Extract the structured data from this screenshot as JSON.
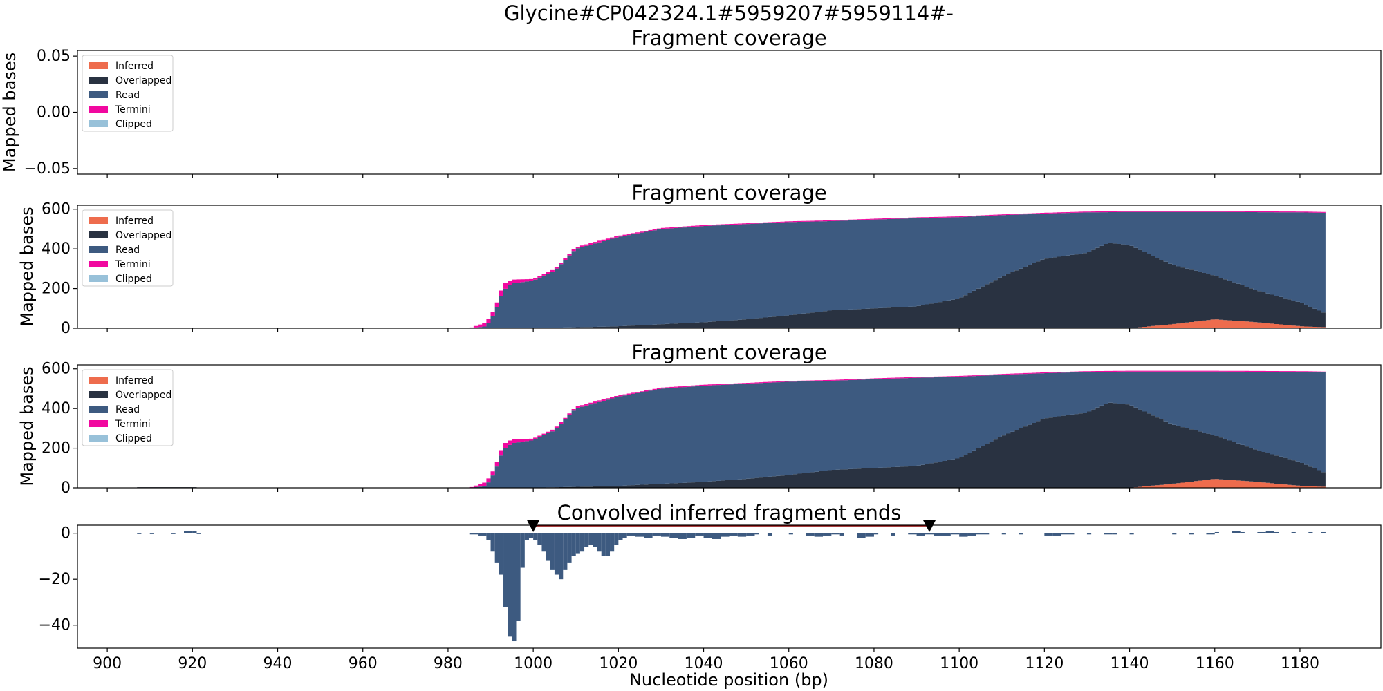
{
  "figure": {
    "suptitle": "Glycine#CP042324.1#5959207#5959114#-",
    "xlabel": "Nucleotide position (bp)"
  },
  "colors": {
    "inferred": "#ee6c4d",
    "overlapped": "#293241",
    "read": "#3d5a80",
    "termini": "#f1089f",
    "clipped": "#98c1d9",
    "marker": "#000000",
    "marker_line": "#8b0000"
  },
  "legend": {
    "placement": "upper-left",
    "entries": [
      "Inferred",
      "Overlapped",
      "Read",
      "Termini",
      "Clipped"
    ]
  },
  "chart_data": [
    {
      "type": "area",
      "title": "Fragment coverage",
      "ylabel": "Mapped bases",
      "xlim": [
        893,
        1199
      ],
      "ylim": [
        -0.055,
        0.055
      ],
      "yticks": [
        "0.05",
        "0.00",
        "−0.05"
      ],
      "ytick_values": [
        0.05,
        0,
        -0.05
      ],
      "series": []
    },
    {
      "type": "area",
      "stacked": true,
      "title": "Fragment coverage",
      "ylabel": "Mapped bases",
      "xlim": [
        893,
        1199
      ],
      "ylim": [
        0,
        620
      ],
      "yticks": [
        "0",
        "200",
        "400",
        "600"
      ],
      "ytick_values": [
        0,
        200,
        400,
        600
      ],
      "x_knots": [
        985,
        989,
        991,
        993,
        995,
        1000,
        1005,
        1010,
        1015,
        1020,
        1025,
        1030,
        1040,
        1050,
        1060,
        1070,
        1080,
        1090,
        1100,
        1110,
        1120,
        1130,
        1135,
        1140,
        1150,
        1160,
        1170,
        1180,
        1186
      ],
      "overlapped_knots": [
        0,
        0,
        0,
        0,
        0,
        0,
        3,
        5,
        7,
        10,
        15,
        20,
        30,
        45,
        65,
        90,
        100,
        110,
        150,
        260,
        350,
        380,
        430,
        420,
        300,
        220,
        160,
        120,
        70
      ],
      "inferred_knots": [
        0,
        0,
        0,
        0,
        0,
        0,
        0,
        0,
        0,
        0,
        0,
        0,
        0,
        0,
        0,
        0,
        0,
        0,
        0,
        0,
        0,
        0,
        0,
        0,
        20,
        45,
        30,
        10,
        5
      ],
      "total_knots": [
        0,
        10,
        80,
        190,
        225,
        240,
        290,
        400,
        430,
        460,
        480,
        500,
        515,
        525,
        535,
        540,
        548,
        555,
        560,
        570,
        578,
        584,
        585,
        586,
        586,
        586,
        585,
        584,
        582
      ],
      "termini_knots": [
        0,
        20,
        20,
        30,
        20,
        8,
        8,
        8,
        8,
        6,
        5,
        5,
        5,
        4,
        4,
        4,
        4,
        4,
        4,
        4,
        4,
        4,
        4,
        4,
        4,
        4,
        4,
        4,
        4
      ],
      "tail": {
        "x": [
          907,
          921
        ],
        "value": 3
      }
    },
    {
      "type": "area",
      "stacked": true,
      "title": "Fragment coverage",
      "ylabel": "Mapped bases",
      "xlim": [
        893,
        1199
      ],
      "ylim": [
        0,
        620
      ],
      "yticks": [
        "0",
        "200",
        "400",
        "600"
      ],
      "ytick_values": [
        0,
        200,
        400,
        600
      ],
      "x_knots": [
        985,
        989,
        991,
        993,
        995,
        1000,
        1005,
        1010,
        1015,
        1020,
        1025,
        1030,
        1040,
        1050,
        1060,
        1070,
        1080,
        1090,
        1100,
        1110,
        1120,
        1130,
        1135,
        1140,
        1150,
        1160,
        1170,
        1180,
        1186
      ],
      "overlapped_knots": [
        0,
        0,
        0,
        0,
        0,
        0,
        3,
        5,
        7,
        10,
        15,
        20,
        30,
        45,
        65,
        90,
        100,
        110,
        150,
        260,
        350,
        380,
        430,
        420,
        300,
        220,
        160,
        120,
        70
      ],
      "inferred_knots": [
        0,
        0,
        0,
        0,
        0,
        0,
        0,
        0,
        0,
        0,
        0,
        0,
        0,
        0,
        0,
        0,
        0,
        0,
        0,
        0,
        0,
        0,
        0,
        0,
        20,
        45,
        30,
        10,
        5
      ],
      "total_knots": [
        0,
        10,
        80,
        190,
        225,
        240,
        290,
        400,
        430,
        460,
        480,
        500,
        515,
        525,
        535,
        540,
        548,
        555,
        560,
        570,
        578,
        584,
        585,
        586,
        586,
        586,
        585,
        584,
        582
      ],
      "termini_knots": [
        0,
        20,
        20,
        30,
        20,
        8,
        8,
        8,
        8,
        6,
        5,
        5,
        5,
        4,
        4,
        4,
        4,
        4,
        4,
        4,
        4,
        4,
        4,
        4,
        4,
        4,
        4,
        4,
        4
      ],
      "tail": {
        "x": [
          907,
          921
        ],
        "value": 3
      }
    },
    {
      "type": "bar",
      "title": "Convolved inferred fragment ends",
      "xlim": [
        893,
        1199
      ],
      "ylim": [
        -50,
        3.5
      ],
      "yticks": [
        "0",
        "−20",
        "−40"
      ],
      "ytick_values": [
        0,
        -20,
        -40
      ],
      "xticks": [
        "900",
        "920",
        "940",
        "960",
        "980",
        "1000",
        "1020",
        "1040",
        "1060",
        "1080",
        "1100",
        "1120",
        "1140",
        "1160",
        "1180"
      ],
      "xtick_values": [
        900,
        920,
        940,
        960,
        980,
        1000,
        1020,
        1040,
        1060,
        1080,
        1100,
        1120,
        1140,
        1160,
        1180
      ],
      "markers": [
        1000,
        1093
      ],
      "x": [
        907,
        910,
        915,
        918,
        920,
        921,
        985,
        987,
        989,
        990,
        991,
        992,
        993,
        994,
        995,
        996,
        997,
        998,
        999,
        1000,
        1001,
        1002,
        1003,
        1004,
        1005,
        1006,
        1007,
        1008,
        1009,
        1010,
        1011,
        1012,
        1013,
        1014,
        1015,
        1016,
        1017,
        1018,
        1019,
        1020,
        1021,
        1022,
        1024,
        1026,
        1028,
        1030,
        1032,
        1034,
        1036,
        1038,
        1040,
        1042,
        1044,
        1046,
        1048,
        1050,
        1052,
        1055,
        1060,
        1064,
        1066,
        1068,
        1070,
        1072,
        1076,
        1078,
        1080,
        1084,
        1088,
        1090,
        1092,
        1094,
        1096,
        1098,
        1100,
        1102,
        1104,
        1106,
        1110,
        1114,
        1120,
        1122,
        1124,
        1126,
        1130,
        1134,
        1136,
        1140,
        1150,
        1154,
        1158,
        1160,
        1164,
        1166,
        1170,
        1172,
        1174,
        1178,
        1182,
        1185
      ],
      "values": [
        0,
        0,
        0,
        1,
        1,
        0,
        -0.5,
        -1,
        -3,
        -8,
        -13,
        -18,
        -32,
        -45,
        -47,
        -38,
        -15,
        -3,
        -2,
        -3,
        -5,
        -8,
        -12,
        -16,
        -18,
        -20,
        -16,
        -13,
        -10,
        -9,
        -8,
        -6,
        -5,
        -6,
        -8,
        -10,
        -10,
        -8,
        -5,
        -3,
        -2,
        -1,
        -1.5,
        -2,
        -1,
        -1.5,
        -2,
        -2.5,
        -2,
        -1,
        -2,
        -2.5,
        -1.5,
        -1,
        -1.5,
        -1,
        -0.5,
        -1,
        -0.5,
        -1,
        -1.5,
        -1,
        -0.5,
        -1,
        -2,
        -1.5,
        -0.5,
        -1,
        -0.5,
        -1,
        -0.5,
        -1,
        -1,
        -0.5,
        -1.5,
        -1,
        -0.5,
        -0.5,
        -0.5,
        -0.5,
        -1,
        -1,
        -0.5,
        -0.5,
        -0.5,
        -0.5,
        -0.5,
        -0.5,
        -0.5,
        -0.5,
        -0.5,
        0.5,
        1,
        0.5,
        0.5,
        1,
        0.5,
        0.5,
        0.5,
        0.5
      ]
    }
  ]
}
